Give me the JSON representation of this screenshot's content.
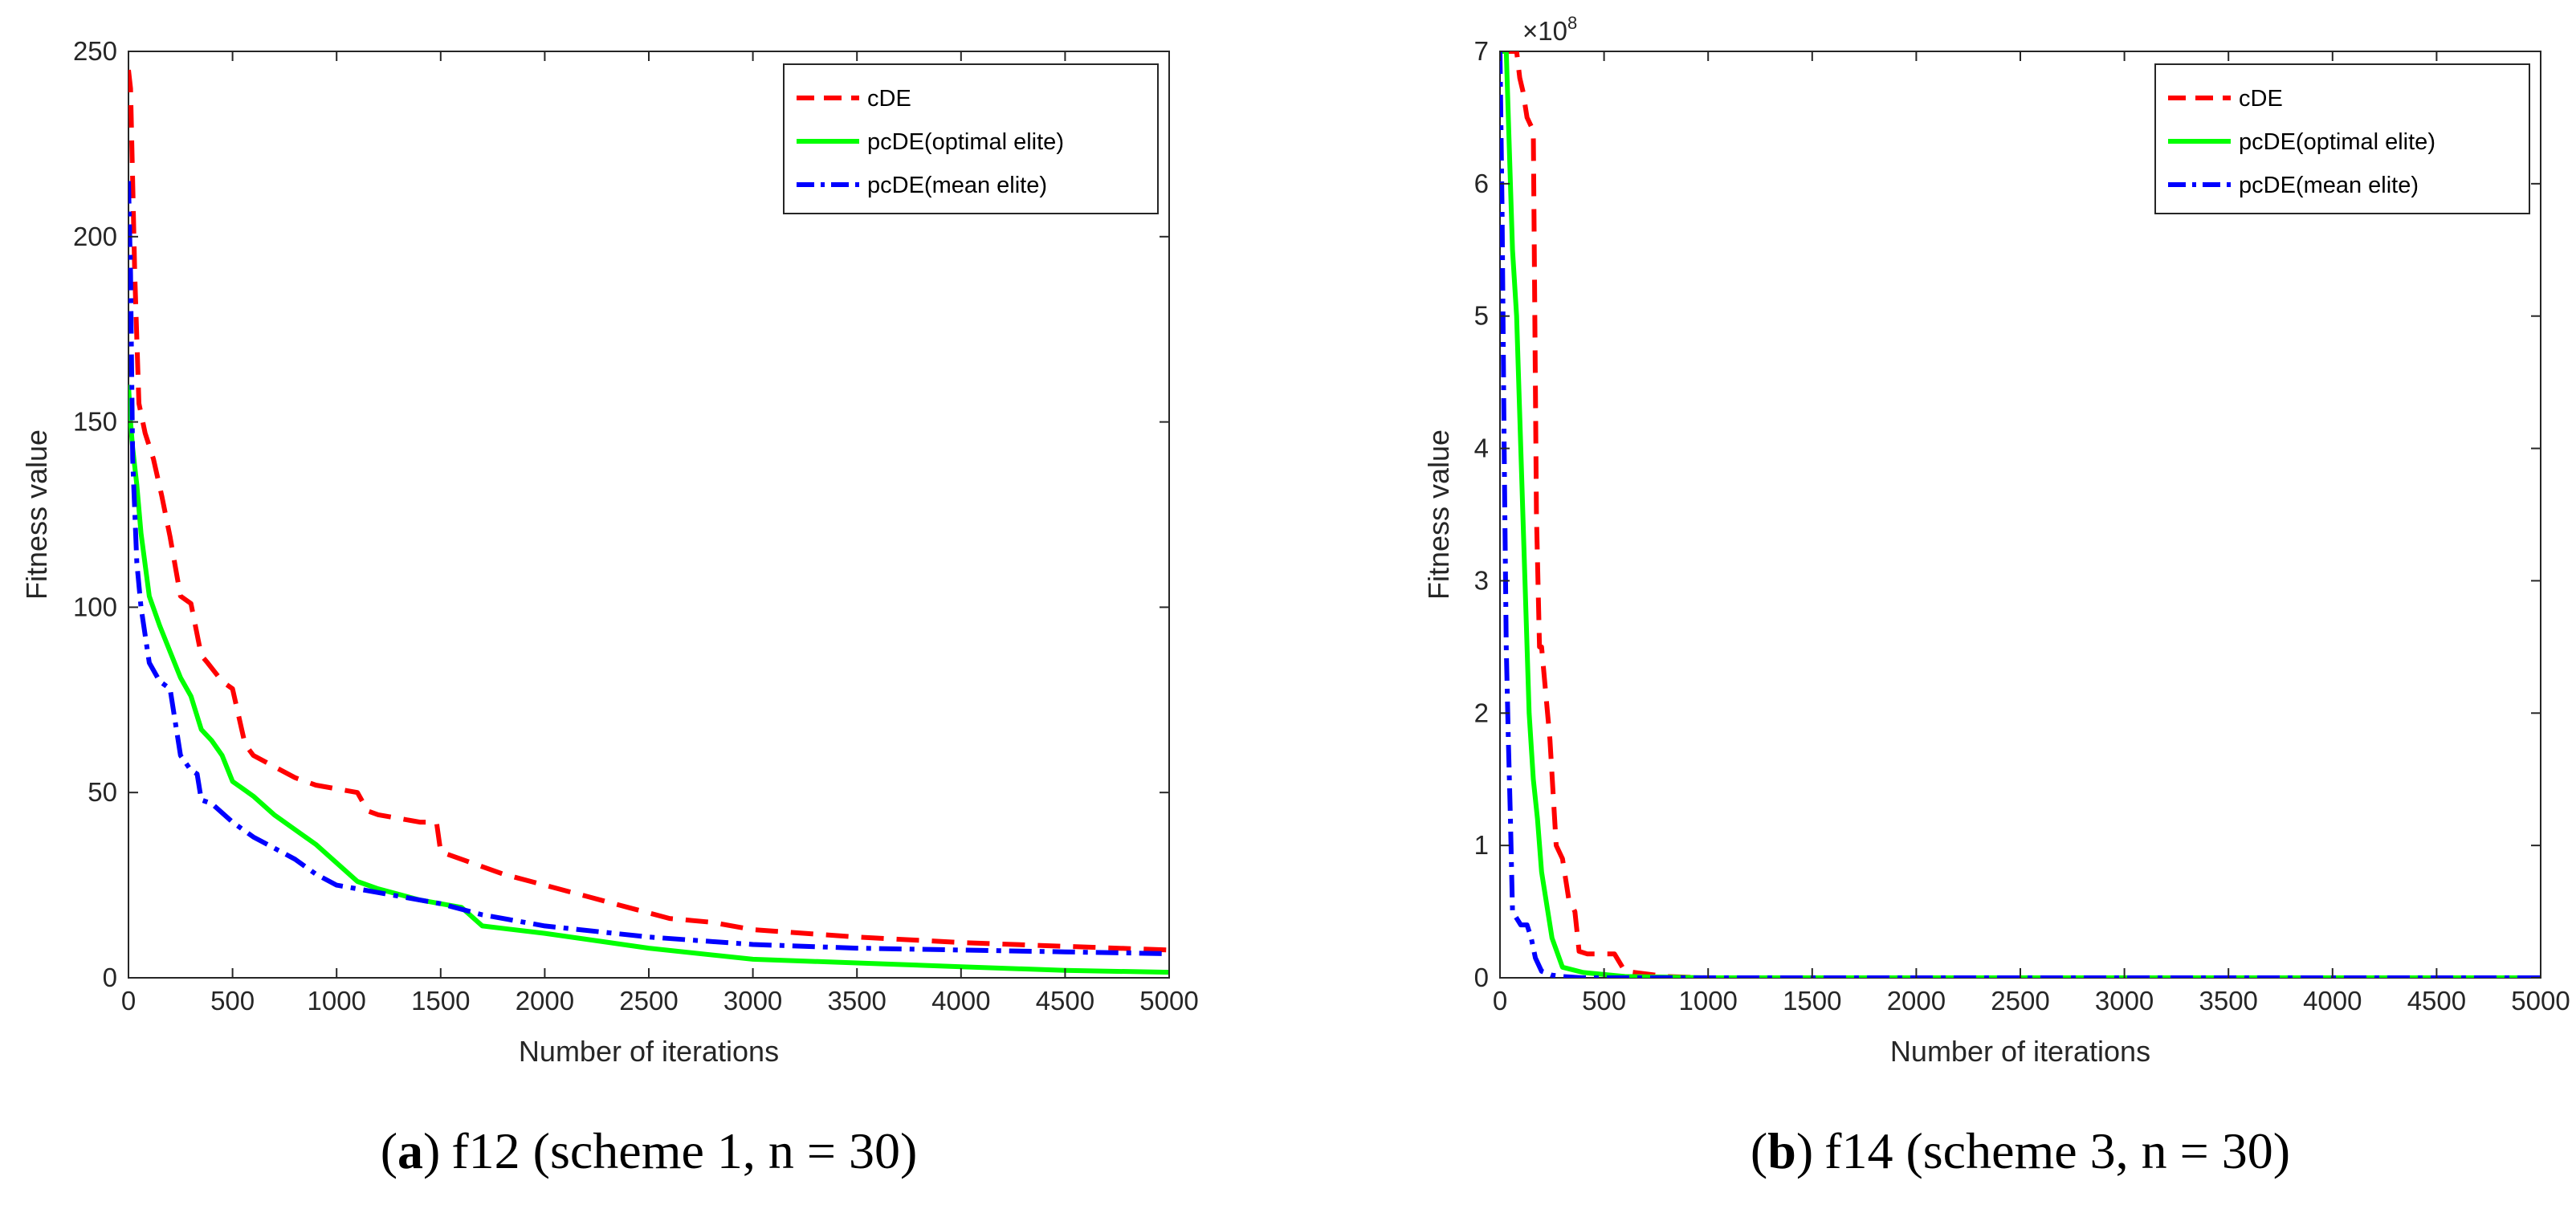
{
  "chart_data": [
    {
      "type": "line",
      "caption_letter": "a",
      "caption_open": "(",
      "caption_close": ")",
      "caption_text": "f12 (scheme 1, n = 30)",
      "title": "",
      "xlabel": "Number of iterations",
      "ylabel": "Fitness value",
      "xlim": [
        0,
        5000
      ],
      "ylim": [
        0,
        250
      ],
      "x_ticks": [
        "0",
        "500",
        "1000",
        "1500",
        "2000",
        "2500",
        "3000",
        "3500",
        "4000",
        "4500",
        "5000"
      ],
      "y_ticks": [
        "0",
        "50",
        "100",
        "150",
        "200",
        "250"
      ],
      "legend_position": "top-right",
      "exponent_label": null,
      "series": [
        {
          "name": "cDE",
          "color": "#ff0000",
          "style": "dashed",
          "x": [
            0,
            10,
            20,
            30,
            50,
            80,
            120,
            160,
            200,
            250,
            300,
            350,
            380,
            450,
            500,
            560,
            600,
            700,
            800,
            900,
            1000,
            1100,
            1150,
            1200,
            1300,
            1400,
            1480,
            1500,
            1600,
            1800,
            2000,
            2200,
            2400,
            2600,
            2800,
            3000,
            3500,
            4000,
            4500,
            5000
          ],
          "y": [
            245,
            240,
            215,
            190,
            155,
            147,
            140,
            130,
            119,
            103,
            101,
            87,
            85,
            80,
            78,
            63,
            60,
            57,
            54,
            52,
            51,
            50,
            45,
            44,
            43,
            42,
            42,
            34,
            32,
            28,
            25,
            22,
            19,
            16,
            15,
            13,
            11,
            9.5,
            8.5,
            7.5
          ]
        },
        {
          "name": "pcDE(optimal elite)",
          "color": "#00ff00",
          "style": "solid",
          "x": [
            0,
            10,
            20,
            40,
            60,
            100,
            150,
            200,
            250,
            300,
            350,
            400,
            450,
            500,
            550,
            600,
            700,
            800,
            900,
            1000,
            1100,
            1200,
            1400,
            1600,
            1700,
            2000,
            2500,
            3000,
            3500,
            4000,
            4500,
            5000
          ],
          "y": [
            160,
            150,
            143,
            133,
            120,
            103,
            95,
            88,
            81,
            76,
            67,
            64,
            60,
            53,
            51,
            49,
            44,
            40,
            36,
            31,
            26,
            24,
            21,
            19,
            14,
            12,
            8,
            5,
            4,
            3,
            2,
            1.5
          ]
        },
        {
          "name": "pcDE(mean elite)",
          "color": "#0000ff",
          "style": "dashdot",
          "x": [
            0,
            10,
            20,
            40,
            60,
            100,
            150,
            200,
            250,
            300,
            330,
            350,
            400,
            500,
            600,
            700,
            800,
            900,
            1000,
            1100,
            1200,
            1500,
            1700,
            2000,
            2500,
            3000,
            3500,
            4000,
            4500,
            5000
          ],
          "y": [
            215,
            190,
            140,
            112,
            100,
            85,
            80,
            78,
            60,
            56,
            55,
            48,
            47,
            42,
            38,
            35,
            32,
            28,
            25,
            24,
            23,
            20,
            17,
            14,
            11,
            9,
            8,
            7.5,
            7,
            6.5
          ]
        }
      ]
    },
    {
      "type": "line",
      "caption_letter": "b",
      "caption_open": "(",
      "caption_close": ")",
      "caption_text": "f14 (scheme 3, n = 30)",
      "title": "",
      "xlabel": "Number of iterations",
      "ylabel": "Fitness value",
      "xlim": [
        0,
        5000
      ],
      "ylim": [
        0,
        7
      ],
      "x_ticks": [
        "0",
        "500",
        "1000",
        "1500",
        "2000",
        "2500",
        "3000",
        "3500",
        "4000",
        "4500",
        "5000"
      ],
      "y_ticks": [
        "0",
        "1",
        "2",
        "3",
        "4",
        "5",
        "6",
        "7"
      ],
      "legend_position": "top-right",
      "exponent_label": {
        "base": "×10",
        "power": "8"
      },
      "series": [
        {
          "name": "cDE",
          "color": "#ff0000",
          "style": "dashed",
          "x": [
            0,
            80,
            95,
            110,
            130,
            160,
            175,
            190,
            200,
            240,
            270,
            300,
            330,
            360,
            380,
            420,
            550,
            600,
            700,
            800,
            1000,
            5000
          ],
          "y": [
            7,
            7,
            6.8,
            6.7,
            6.5,
            6.4,
            3.5,
            2.5,
            2.5,
            1.8,
            1.0,
            0.9,
            0.6,
            0.5,
            0.2,
            0.18,
            0.18,
            0.05,
            0.03,
            0.01,
            0,
            0
          ]
        },
        {
          "name": "pcDE(optimal elite)",
          "color": "#00ff00",
          "style": "solid",
          "x": [
            0,
            30,
            60,
            80,
            100,
            120,
            140,
            160,
            180,
            200,
            250,
            300,
            400,
            600,
            1000,
            5000
          ],
          "y": [
            7,
            7,
            5.5,
            5.0,
            4.0,
            3.0,
            2.0,
            1.5,
            1.2,
            0.8,
            0.3,
            0.08,
            0.04,
            0.01,
            0,
            0
          ]
        },
        {
          "name": "pcDE(mean elite)",
          "color": "#0000ff",
          "style": "dashdot",
          "x": [
            0,
            10,
            20,
            30,
            40,
            50,
            60,
            80,
            100,
            130,
            150,
            170,
            200,
            250,
            300,
            400,
            1000,
            5000
          ],
          "y": [
            7,
            5.8,
            4.0,
            2.5,
            1.8,
            1.2,
            0.5,
            0.45,
            0.4,
            0.4,
            0.3,
            0.15,
            0.05,
            0.02,
            0.01,
            0,
            0,
            0
          ]
        }
      ]
    }
  ]
}
